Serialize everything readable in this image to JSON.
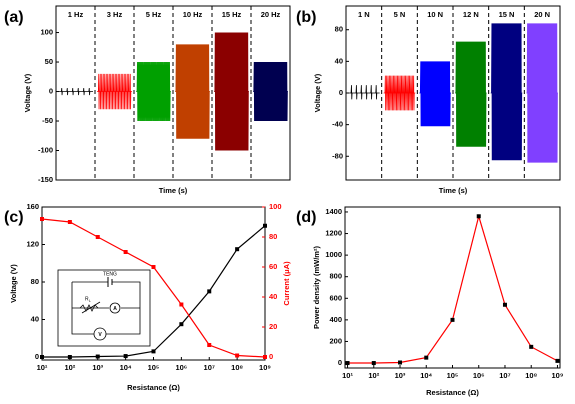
{
  "chart_data": [
    {
      "type": "waveform",
      "panel_label": "(a)",
      "ylabel": "Voltage (V)",
      "xlabel": "Time (s)",
      "ylim": [
        -150,
        145
      ],
      "yticks": [
        -150,
        -100,
        -50,
        0,
        50,
        100
      ],
      "series": [
        {
          "name": "1 Hz",
          "color": "#000000",
          "values": [
            6,
            -6
          ]
        },
        {
          "name": "3 Hz",
          "color": "#ff0000",
          "values": [
            30,
            -30
          ]
        },
        {
          "name": "5 Hz",
          "color": "#00a000",
          "values": [
            50,
            -50
          ]
        },
        {
          "name": "10 Hz",
          "color": "#c04000",
          "values": [
            80,
            -80
          ]
        },
        {
          "name": "15 Hz",
          "color": "#8b0000",
          "values": [
            100,
            -100
          ]
        },
        {
          "name": "20 Hz",
          "color": "#000050",
          "values": [
            50,
            -50
          ]
        }
      ]
    },
    {
      "type": "waveform",
      "panel_label": "(b)",
      "ylabel": "Voltage (V)",
      "xlabel": "Time (s)",
      "ylim": [
        -110,
        110
      ],
      "yticks": [
        -80,
        -40,
        0,
        40,
        80
      ],
      "series": [
        {
          "name": "1 N",
          "color": "#000000",
          "values": [
            10,
            -8
          ]
        },
        {
          "name": "5 N",
          "color": "#ff0000",
          "values": [
            22,
            -22
          ]
        },
        {
          "name": "10 N",
          "color": "#0000ff",
          "values": [
            40,
            -42
          ]
        },
        {
          "name": "12 N",
          "color": "#008000",
          "values": [
            65,
            -68
          ]
        },
        {
          "name": "15 N",
          "color": "#000080",
          "values": [
            88,
            -85
          ]
        },
        {
          "name": "20 N",
          "color": "#8040ff",
          "values": [
            88,
            -88
          ]
        }
      ]
    },
    {
      "type": "line",
      "panel_label": "(c)",
      "xlabel": "Resistance (Ω)",
      "ylabel": "Voltage (V)",
      "y2label": "Current (μA)",
      "xscale": "log",
      "x": [
        10,
        100,
        1000,
        10000,
        100000,
        1000000,
        10000000,
        100000000,
        1000000000
      ],
      "xlim": [
        10,
        1000000000
      ],
      "xticks": [
        {
          "value": 10,
          "label": "10¹"
        },
        {
          "value": 100,
          "label": "10²"
        },
        {
          "value": 1000,
          "label": "10³"
        },
        {
          "value": 10000,
          "label": "10⁴"
        },
        {
          "value": 100000,
          "label": "10⁵"
        },
        {
          "value": 1000000,
          "label": "10⁶"
        },
        {
          "value": 10000000,
          "label": "10⁷"
        },
        {
          "value": 100000000,
          "label": "10⁸"
        },
        {
          "value": 1000000000,
          "label": "10⁹"
        }
      ],
      "ylim": [
        -3.2,
        160
      ],
      "yticks": [
        0,
        40,
        80,
        120,
        160
      ],
      "y2lim": [
        -2,
        100
      ],
      "y2ticks": [
        0,
        20,
        40,
        60,
        80,
        100
      ],
      "y2color": "#ff0000",
      "series": [
        {
          "color": "#000000",
          "values": [
            0,
            0,
            0.5,
            1,
            6,
            35,
            70,
            115,
            140
          ]
        },
        {
          "color": "#ff0000",
          "axis": "y2",
          "values": [
            92,
            90,
            80,
            70,
            60,
            35,
            8,
            1,
            0
          ]
        }
      ],
      "inset": {
        "labels": [
          "TENG",
          "R",
          "L",
          "A",
          "V"
        ]
      }
    },
    {
      "type": "line",
      "panel_label": "(d)",
      "xlabel": "Resistance (Ω)",
      "ylabel": "Power density (mW/m²)",
      "xscale": "log",
      "x": [
        10,
        100,
        1000,
        10000,
        100000,
        1000000,
        10000000,
        100000000,
        1000000000
      ],
      "xlim": [
        8,
        1250000000
      ],
      "xticks": [
        {
          "value": 10,
          "label": "10¹"
        },
        {
          "value": 100,
          "label": "10²"
        },
        {
          "value": 1000,
          "label": "10³"
        },
        {
          "value": 10000,
          "label": "10⁴"
        },
        {
          "value": 100000,
          "label": "10⁵"
        },
        {
          "value": 1000000,
          "label": "10⁶"
        },
        {
          "value": 10000000,
          "label": "10⁷"
        },
        {
          "value": 100000000,
          "label": "10⁸"
        },
        {
          "value": 1000000000,
          "label": "10⁹"
        }
      ],
      "ylim": [
        -46,
        1446
      ],
      "yticks": [
        0,
        200,
        400,
        600,
        800,
        1000,
        1200,
        1400
      ],
      "series": [
        {
          "color": "#ff0000",
          "marker_color": "#000000",
          "values": [
            0,
            0,
            5,
            50,
            400,
            1360,
            540,
            150,
            20
          ]
        }
      ]
    }
  ]
}
